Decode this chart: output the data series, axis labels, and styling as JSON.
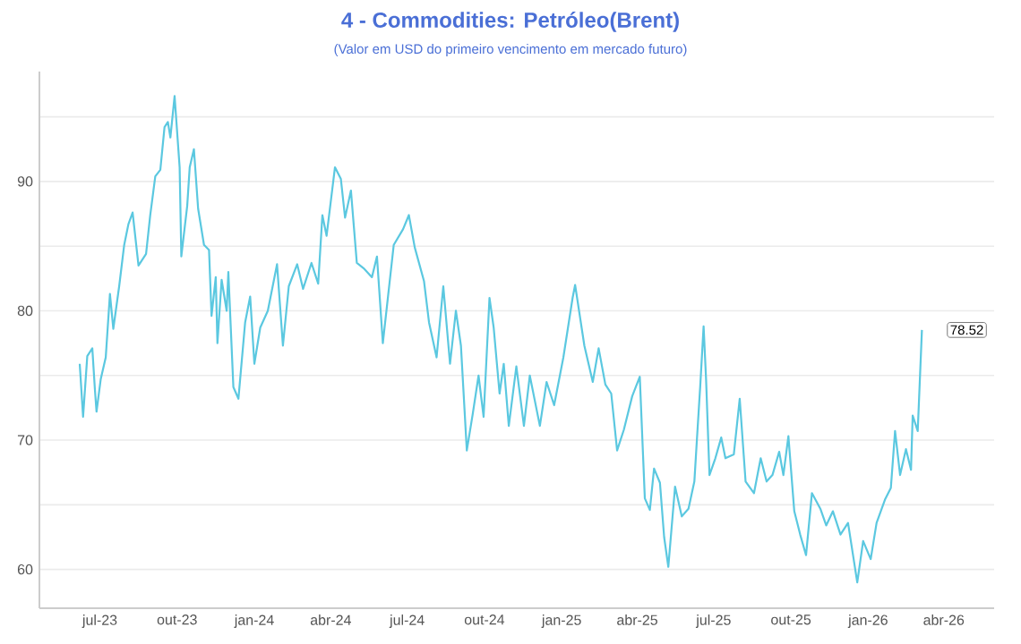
{
  "chart_data": {
    "type": "line",
    "title": "4 - Commodities: Petróleo(Brent)",
    "subtitle": "(Valor em USD do primeiro vencimento em mercado futuro)",
    "series": [
      {
        "color": "#5bc8e0",
        "x": [
          "2023-06-07",
          "2023-06-11",
          "2023-06-16",
          "2023-06-22",
          "2023-06-25",
          "2023-06-27",
          "2023-07-02",
          "2023-07-08",
          "2023-07-13",
          "2023-07-17",
          "2023-07-24",
          "2023-07-30",
          "2023-08-04",
          "2023-08-09",
          "2023-08-16",
          "2023-08-25",
          "2023-08-30",
          "2023-09-05",
          "2023-09-11",
          "2023-09-16",
          "2023-09-20",
          "2023-09-23",
          "2023-09-28",
          "2023-10-04",
          "2023-10-06",
          "2023-10-13",
          "2023-10-16",
          "2023-10-21",
          "2023-10-26",
          "2023-11-02",
          "2023-11-08",
          "2023-11-11",
          "2023-11-16",
          "2023-11-18",
          "2023-11-23",
          "2023-11-29",
          "2023-12-01",
          "2023-12-07",
          "2023-12-13",
          "2023-12-21",
          "2023-12-27",
          "2024-01-01",
          "2024-01-08",
          "2024-01-17",
          "2024-01-28",
          "2024-02-04",
          "2024-02-11",
          "2024-02-21",
          "2024-02-28",
          "2024-03-09",
          "2024-03-17",
          "2024-03-22",
          "2024-03-27",
          "2024-04-06",
          "2024-04-13",
          "2024-04-18",
          "2024-04-25",
          "2024-05-02",
          "2024-05-10",
          "2024-05-20",
          "2024-05-26",
          "2024-06-02",
          "2024-06-15",
          "2024-06-26",
          "2024-07-03",
          "2024-07-10",
          "2024-07-21",
          "2024-07-27",
          "2024-08-05",
          "2024-08-13",
          "2024-08-21",
          "2024-08-28",
          "2024-09-03",
          "2024-09-10",
          "2024-09-17",
          "2024-09-24",
          "2024-09-30",
          "2024-10-07",
          "2024-10-12",
          "2024-10-19",
          "2024-10-24",
          "2024-10-30",
          "2024-11-08",
          "2024-11-17",
          "2024-11-24",
          "2024-12-06",
          "2024-12-14",
          "2024-12-23",
          "2025-01-03",
          "2025-01-14",
          "2025-01-17",
          "2025-01-28",
          "2025-02-07",
          "2025-02-14",
          "2025-02-22",
          "2025-03-01",
          "2025-03-08",
          "2025-03-16",
          "2025-03-26",
          "2025-04-04",
          "2025-04-10",
          "2025-04-16",
          "2025-04-21",
          "2025-04-28",
          "2025-05-03",
          "2025-05-08",
          "2025-05-16",
          "2025-05-24",
          "2025-06-01",
          "2025-06-08",
          "2025-06-11",
          "2025-06-15",
          "2025-06-19",
          "2025-06-22",
          "2025-06-26",
          "2025-07-03",
          "2025-07-10",
          "2025-07-15",
          "2025-07-25",
          "2025-08-01",
          "2025-08-08",
          "2025-08-18",
          "2025-08-26",
          "2025-09-02",
          "2025-09-09",
          "2025-09-17",
          "2025-09-22",
          "2025-09-28",
          "2025-10-05",
          "2025-10-12",
          "2025-10-19",
          "2025-10-26",
          "2025-11-05",
          "2025-11-12",
          "2025-11-20",
          "2025-11-29",
          "2025-12-08",
          "2025-12-19",
          "2025-12-26",
          "2026-01-04",
          "2026-01-11",
          "2026-01-21",
          "2026-01-28",
          "2026-02-02",
          "2026-02-08",
          "2026-02-15",
          "2026-02-21",
          "2026-02-23",
          "2026-03-01",
          "2026-03-06"
        ],
        "values": [
          75.9,
          71.8,
          76.5,
          77.1,
          74.0,
          72.2,
          74.7,
          76.4,
          81.3,
          78.6,
          81.9,
          85.1,
          86.7,
          87.6,
          83.5,
          84.4,
          87.4,
          90.4,
          90.9,
          94.2,
          94.6,
          93.4,
          96.6,
          91.1,
          84.2,
          88.1,
          91.1,
          92.5,
          87.9,
          85.1,
          84.7,
          79.6,
          82.6,
          77.5,
          82.4,
          80.0,
          83.0,
          74.1,
          73.2,
          79.1,
          81.1,
          75.9,
          78.7,
          80.0,
          83.6,
          77.3,
          81.9,
          83.6,
          81.7,
          83.7,
          82.1,
          87.4,
          85.8,
          91.1,
          90.2,
          87.2,
          89.3,
          83.7,
          83.3,
          82.6,
          84.2,
          77.5,
          85.1,
          86.3,
          87.4,
          84.9,
          82.3,
          79.1,
          76.4,
          81.9,
          75.9,
          80.0,
          77.3,
          69.2,
          72.0,
          75.0,
          71.8,
          81.0,
          78.7,
          73.6,
          75.9,
          71.1,
          75.7,
          71.1,
          75.0,
          71.1,
          74.5,
          72.7,
          76.4,
          81.0,
          82.0,
          77.3,
          74.5,
          77.1,
          74.3,
          73.6,
          69.2,
          70.8,
          73.4,
          74.9,
          65.5,
          64.6,
          67.8,
          66.7,
          62.5,
          60.2,
          66.4,
          64.1,
          64.7,
          66.8,
          70.0,
          74.2,
          78.8,
          74.6,
          67.3,
          68.6,
          70.2,
          68.6,
          68.9,
          73.2,
          66.8,
          65.9,
          68.6,
          66.8,
          67.3,
          69.1,
          67.3,
          70.3,
          64.5,
          62.7,
          61.1,
          65.9,
          64.7,
          63.4,
          64.5,
          62.7,
          63.6,
          59.0,
          62.2,
          60.8,
          63.6,
          65.4,
          66.3,
          70.7,
          67.3,
          69.3,
          67.7,
          71.9,
          70.7,
          78.52
        ]
      }
    ],
    "xlim": [
      "2023-04-20",
      "2026-05-31"
    ],
    "xticks": [
      {
        "value": "2023-07-01",
        "label": "jul-23"
      },
      {
        "value": "2023-10-01",
        "label": "out-23"
      },
      {
        "value": "2024-01-01",
        "label": "jan-24"
      },
      {
        "value": "2024-04-01",
        "label": "abr-24"
      },
      {
        "value": "2024-07-01",
        "label": "jul-24"
      },
      {
        "value": "2024-10-01",
        "label": "out-24"
      },
      {
        "value": "2025-01-01",
        "label": "jan-25"
      },
      {
        "value": "2025-04-01",
        "label": "abr-25"
      },
      {
        "value": "2025-07-01",
        "label": "jul-25"
      },
      {
        "value": "2025-10-01",
        "label": "out-25"
      },
      {
        "value": "2026-01-01",
        "label": "jan-26"
      },
      {
        "value": "2026-04-01",
        "label": "abr-26"
      }
    ],
    "ylim": [
      57,
      98.5
    ],
    "yticks": [
      60,
      {
        "value": 65,
        "label": null
      },
      70,
      {
        "value": 75,
        "label": null
      },
      80,
      {
        "value": 85,
        "label": null
      },
      90,
      {
        "value": 95,
        "label": null
      }
    ],
    "grid": "y",
    "marker": "none",
    "line_style": "solid",
    "annotations": [
      {
        "text": "78.52",
        "x": "2026-03-06",
        "y": 78.52
      }
    ]
  }
}
